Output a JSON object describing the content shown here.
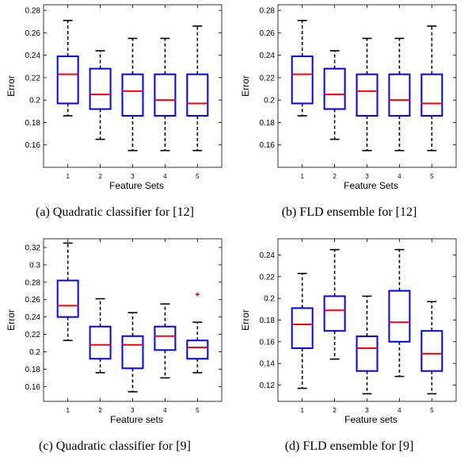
{
  "chart_data": [
    {
      "type": "boxplot",
      "caption": "(a)  Quadratic classifier for [12]",
      "xlabel": "Feature Sets",
      "ylabel": "Error",
      "categories": [
        "1",
        "2",
        "3",
        "4",
        "5"
      ],
      "ylim": [
        0.14,
        0.285
      ],
      "yticks": [
        "0.16",
        "0.18",
        "0.2",
        "0.22",
        "0.24",
        "0.26",
        "0.28"
      ],
      "ytick_values": [
        0.16,
        0.18,
        0.2,
        0.22,
        0.24,
        0.26,
        0.28
      ],
      "boxes": [
        {
          "whisker_low": 0.186,
          "q1": 0.197,
          "median": 0.223,
          "q3": 0.239,
          "whisker_high": 0.271,
          "outliers": []
        },
        {
          "whisker_low": 0.165,
          "q1": 0.192,
          "median": 0.205,
          "q3": 0.228,
          "whisker_high": 0.244,
          "outliers": []
        },
        {
          "whisker_low": 0.155,
          "q1": 0.186,
          "median": 0.208,
          "q3": 0.223,
          "whisker_high": 0.255,
          "outliers": []
        },
        {
          "whisker_low": 0.155,
          "q1": 0.186,
          "median": 0.2,
          "q3": 0.223,
          "whisker_high": 0.255,
          "outliers": []
        },
        {
          "whisker_low": 0.155,
          "q1": 0.186,
          "median": 0.197,
          "q3": 0.223,
          "whisker_high": 0.266,
          "outliers": []
        }
      ]
    },
    {
      "type": "boxplot",
      "caption": "(b)  FLD ensemble for [12]",
      "xlabel": "Feature Sets",
      "ylabel": "Error",
      "categories": [
        "1",
        "2",
        "3",
        "4",
        "5"
      ],
      "ylim": [
        0.14,
        0.285
      ],
      "yticks": [
        "0.16",
        "0.18",
        "0.2",
        "0.22",
        "0.24",
        "0.26",
        "0.28"
      ],
      "ytick_values": [
        0.16,
        0.18,
        0.2,
        0.22,
        0.24,
        0.26,
        0.28
      ],
      "boxes": [
        {
          "whisker_low": 0.186,
          "q1": 0.197,
          "median": 0.223,
          "q3": 0.239,
          "whisker_high": 0.271,
          "outliers": []
        },
        {
          "whisker_low": 0.165,
          "q1": 0.192,
          "median": 0.205,
          "q3": 0.228,
          "whisker_high": 0.244,
          "outliers": []
        },
        {
          "whisker_low": 0.155,
          "q1": 0.186,
          "median": 0.208,
          "q3": 0.223,
          "whisker_high": 0.255,
          "outliers": []
        },
        {
          "whisker_low": 0.155,
          "q1": 0.186,
          "median": 0.2,
          "q3": 0.223,
          "whisker_high": 0.255,
          "outliers": []
        },
        {
          "whisker_low": 0.155,
          "q1": 0.186,
          "median": 0.197,
          "q3": 0.223,
          "whisker_high": 0.266,
          "outliers": []
        }
      ]
    },
    {
      "type": "boxplot",
      "caption": "(c)  Quadratic classifier for [9]",
      "xlabel": "Feature sets",
      "ylabel": "Error",
      "categories": [
        "1",
        "2",
        "3",
        "4",
        "5"
      ],
      "ylim": [
        0.143,
        0.33
      ],
      "yticks": [
        "0.16",
        "0.18",
        "0.2",
        "0.22",
        "0.24",
        "0.26",
        "0.28",
        "0.3",
        "0.32"
      ],
      "ytick_values": [
        0.16,
        0.18,
        0.2,
        0.22,
        0.24,
        0.26,
        0.28,
        0.3,
        0.32
      ],
      "boxes": [
        {
          "whisker_low": 0.213,
          "q1": 0.24,
          "median": 0.253,
          "q3": 0.282,
          "whisker_high": 0.325,
          "outliers": []
        },
        {
          "whisker_low": 0.176,
          "q1": 0.192,
          "median": 0.208,
          "q3": 0.229,
          "whisker_high": 0.261,
          "outliers": []
        },
        {
          "whisker_low": 0.154,
          "q1": 0.181,
          "median": 0.208,
          "q3": 0.218,
          "whisker_high": 0.245,
          "outliers": []
        },
        {
          "whisker_low": 0.17,
          "q1": 0.202,
          "median": 0.218,
          "q3": 0.229,
          "whisker_high": 0.255,
          "outliers": []
        },
        {
          "whisker_low": 0.176,
          "q1": 0.192,
          "median": 0.205,
          "q3": 0.213,
          "whisker_high": 0.234,
          "outliers": [
            0.266
          ]
        }
      ]
    },
    {
      "type": "boxplot",
      "caption": "(d)  FLD ensemble for [9]",
      "xlabel": "Feature sets",
      "ylabel": "Error",
      "categories": [
        "1",
        "2",
        "3",
        "4",
        "5"
      ],
      "ylim": [
        0.105,
        0.255
      ],
      "yticks": [
        "0.12",
        "0.14",
        "0.16",
        "0.18",
        "0.2",
        "0.22",
        "0.24"
      ],
      "ytick_values": [
        0.12,
        0.14,
        0.16,
        0.18,
        0.2,
        0.22,
        0.24
      ],
      "boxes": [
        {
          "whisker_low": 0.117,
          "q1": 0.154,
          "median": 0.176,
          "q3": 0.191,
          "whisker_high": 0.223,
          "outliers": []
        },
        {
          "whisker_low": 0.144,
          "q1": 0.17,
          "median": 0.189,
          "q3": 0.202,
          "whisker_high": 0.245,
          "outliers": []
        },
        {
          "whisker_low": 0.112,
          "q1": 0.133,
          "median": 0.154,
          "q3": 0.165,
          "whisker_high": 0.202,
          "outliers": []
        },
        {
          "whisker_low": 0.128,
          "q1": 0.16,
          "median": 0.178,
          "q3": 0.207,
          "whisker_high": 0.245,
          "outliers": []
        },
        {
          "whisker_low": 0.112,
          "q1": 0.133,
          "median": 0.149,
          "q3": 0.17,
          "whisker_high": 0.197,
          "outliers": []
        }
      ]
    }
  ],
  "colors": {
    "box": "#0000ff",
    "median": "#ff0000",
    "whisker": "#000000",
    "outlier": "#ff0000",
    "axes": "#000000"
  }
}
